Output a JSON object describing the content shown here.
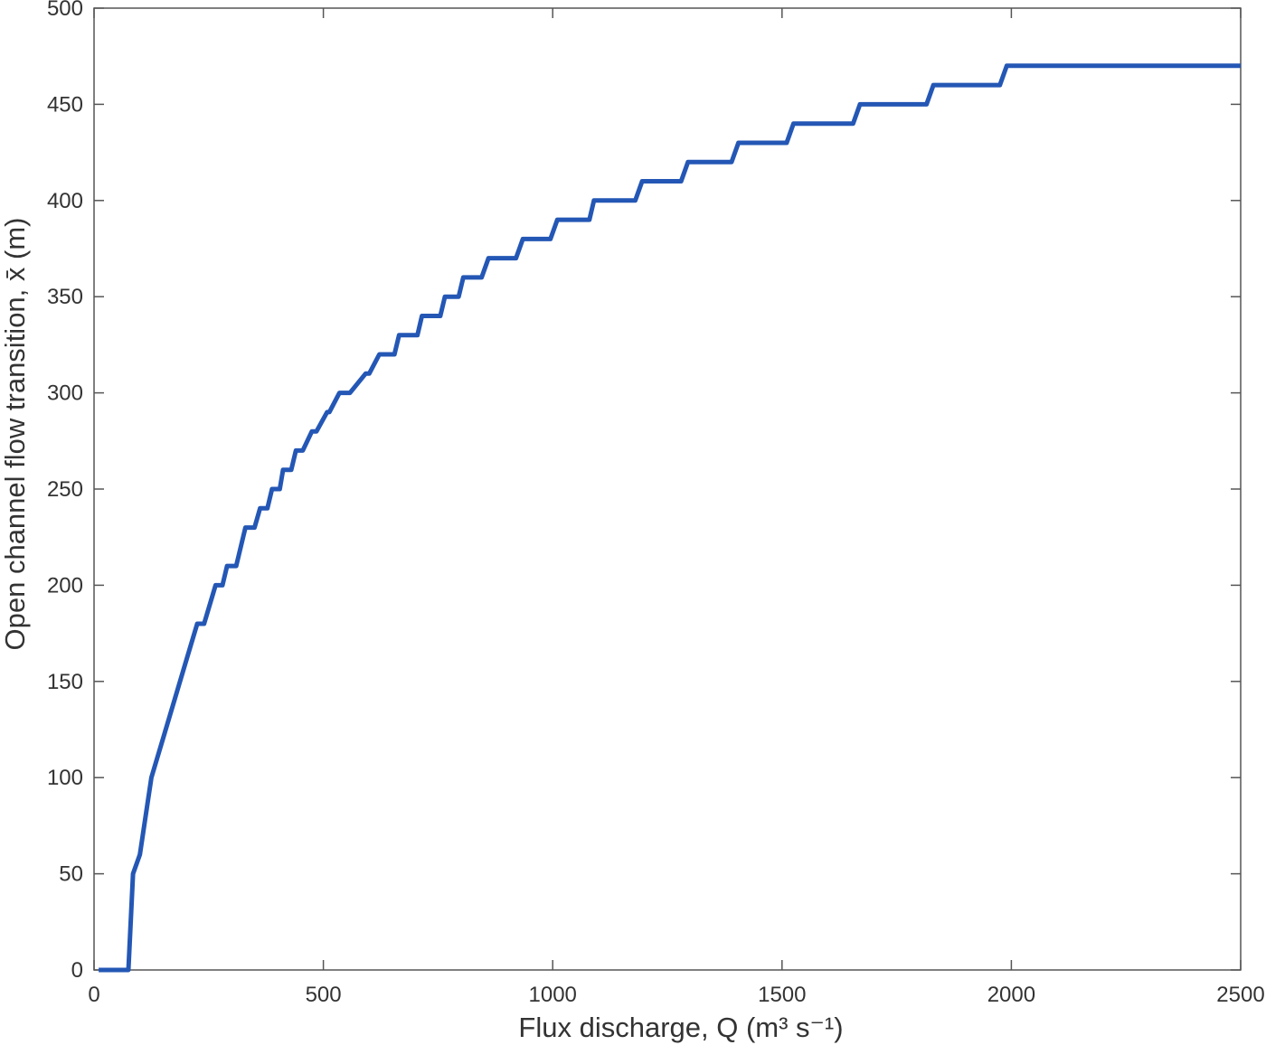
{
  "chart_data": {
    "type": "line",
    "title": "",
    "xlabel": "Flux discharge, Q (m³ s⁻¹)",
    "ylabel": "Open channel flow transition, x̄ (m)",
    "xlim": [
      0,
      2500
    ],
    "ylim": [
      0,
      500
    ],
    "xticks": [
      0,
      500,
      1000,
      1500,
      2000,
      2500
    ],
    "yticks": [
      0,
      50,
      100,
      150,
      200,
      250,
      300,
      350,
      400,
      450,
      500
    ],
    "xtick_labels": [
      "0",
      "500",
      "1000",
      "1500",
      "2000",
      "2500"
    ],
    "ytick_labels": [
      "0",
      "50",
      "100",
      "150",
      "200",
      "250",
      "300",
      "350",
      "400",
      "450",
      "500"
    ],
    "grid": false,
    "line_color": "#2457b5",
    "series": [
      {
        "x": [
          10,
          75,
          85,
          100,
          125,
          150,
          200,
          225,
          240,
          265,
          280,
          290,
          310,
          330,
          350,
          362,
          378,
          388,
          405,
          412,
          430,
          440,
          455,
          475,
          485,
          508,
          513,
          535,
          558,
          592,
          600,
          622,
          655,
          665,
          705,
          715,
          755,
          765,
          795,
          805,
          845,
          860,
          920,
          935,
          995,
          1010,
          1080,
          1090,
          1180,
          1195,
          1280,
          1295,
          1390,
          1405,
          1510,
          1525,
          1655,
          1670,
          1815,
          1830,
          1975,
          1990,
          2165,
          2180,
          2375,
          2390,
          2500
        ],
        "y": [
          0,
          0,
          50,
          60,
          100,
          120,
          160,
          180,
          180,
          200,
          200,
          210,
          210,
          230,
          230,
          240,
          240,
          250,
          250,
          260,
          260,
          270,
          270,
          280,
          280,
          290,
          290,
          300,
          300,
          310,
          310,
          320,
          320,
          330,
          330,
          340,
          340,
          350,
          350,
          360,
          360,
          370,
          370,
          380,
          380,
          390,
          390,
          400,
          400,
          410,
          410,
          420,
          420,
          430,
          430,
          440,
          440,
          450,
          450,
          460,
          460,
          470,
          470,
          470,
          470,
          470,
          470
        ]
      }
    ]
  }
}
